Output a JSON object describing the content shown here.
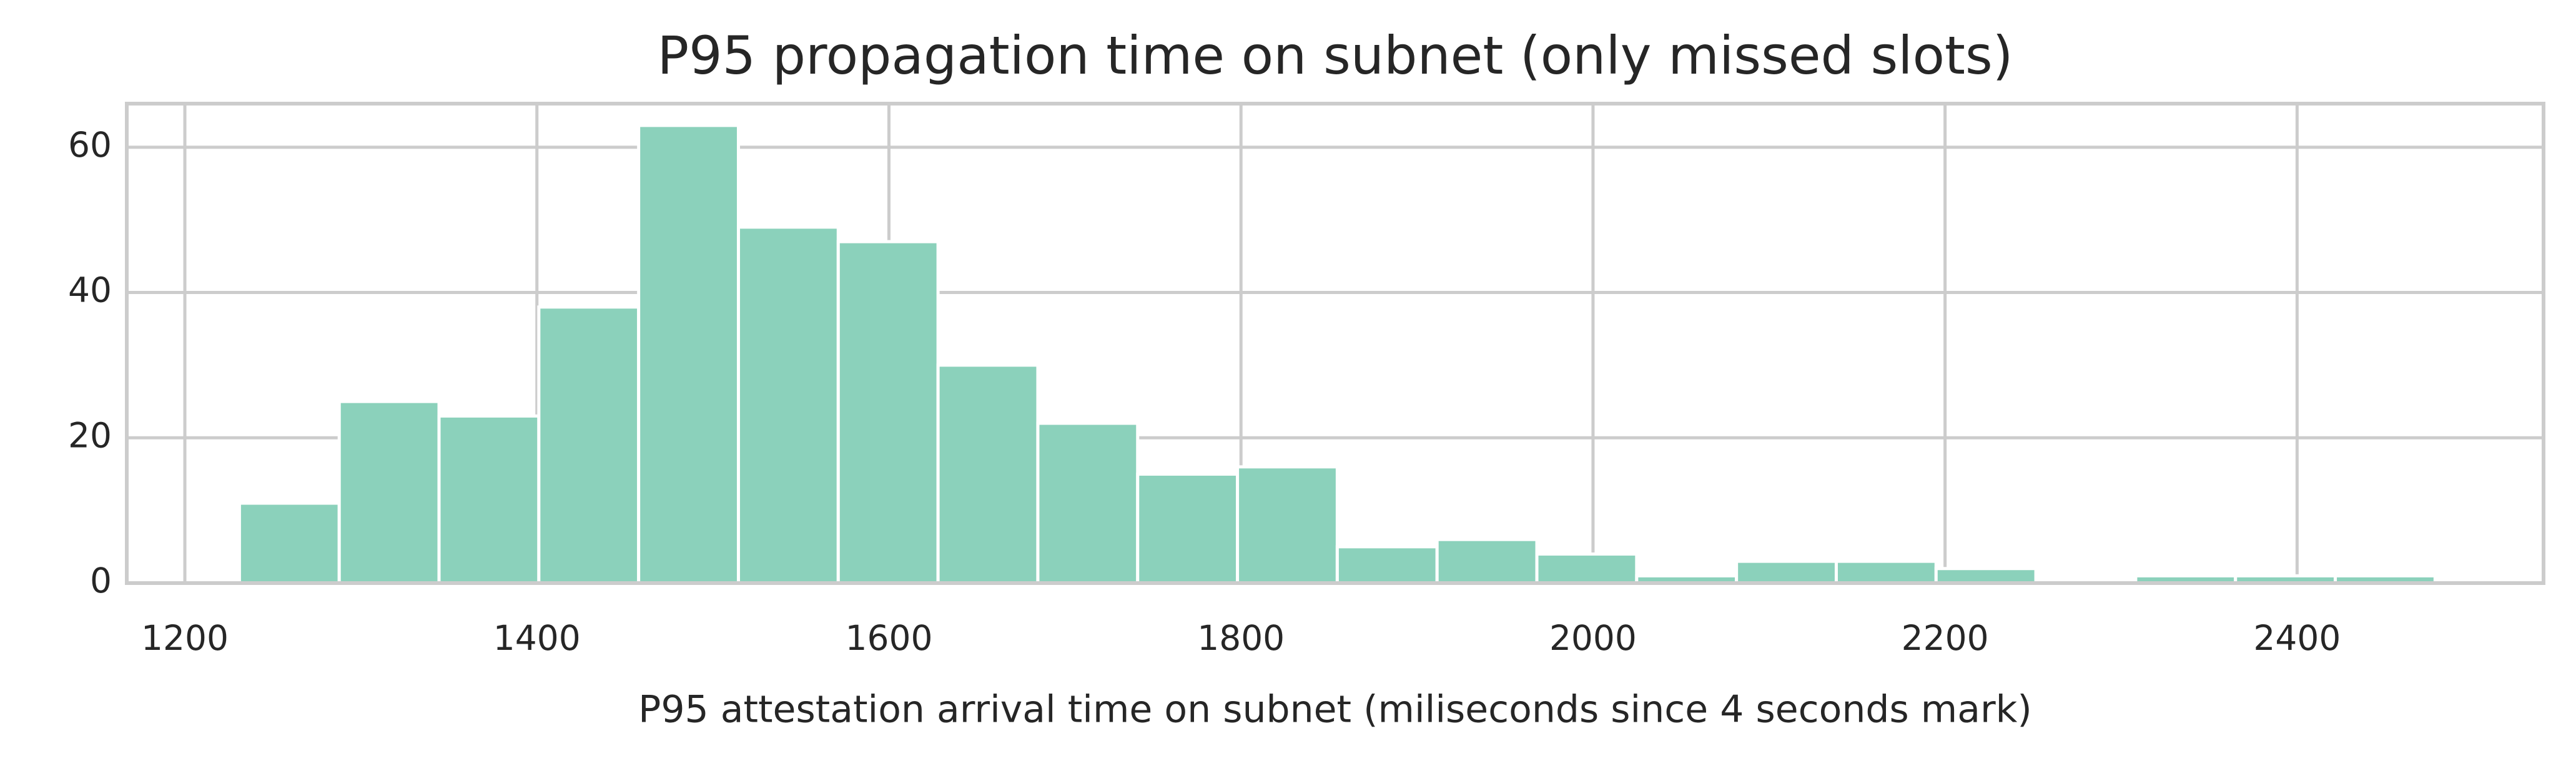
{
  "chart_data": {
    "type": "histogram",
    "title": "P95 propagation time on subnet (only missed slots)",
    "x_label": "P95 attestation arrival time on subnet (miliseconds since 4 seconds mark)",
    "bins": [
      1231,
      1287.7,
      1344.4,
      1401.1,
      1457.8,
      1514.5,
      1571.2,
      1627.9,
      1684.6,
      1741.3,
      1798,
      1854.7,
      1911.4,
      1968.1,
      2024.8,
      2081.5,
      2138.2,
      2194.9,
      2251.6,
      2308.3,
      2365,
      2421.7,
      2478.4
    ],
    "values": [
      11,
      25,
      23,
      38,
      63,
      49,
      47,
      30,
      22,
      15,
      16,
      5,
      6,
      4,
      1,
      3,
      3,
      2,
      0,
      1,
      1,
      1
    ],
    "color": "#8bd1bb",
    "xlim": [
      1167,
      2540
    ],
    "xticks": [
      1200,
      1400,
      1600,
      1800,
      2000,
      2200,
      2400
    ],
    "ylim": [
      0,
      66
    ],
    "yticks": [
      0,
      20,
      40,
      60
    ],
    "grid": true
  }
}
